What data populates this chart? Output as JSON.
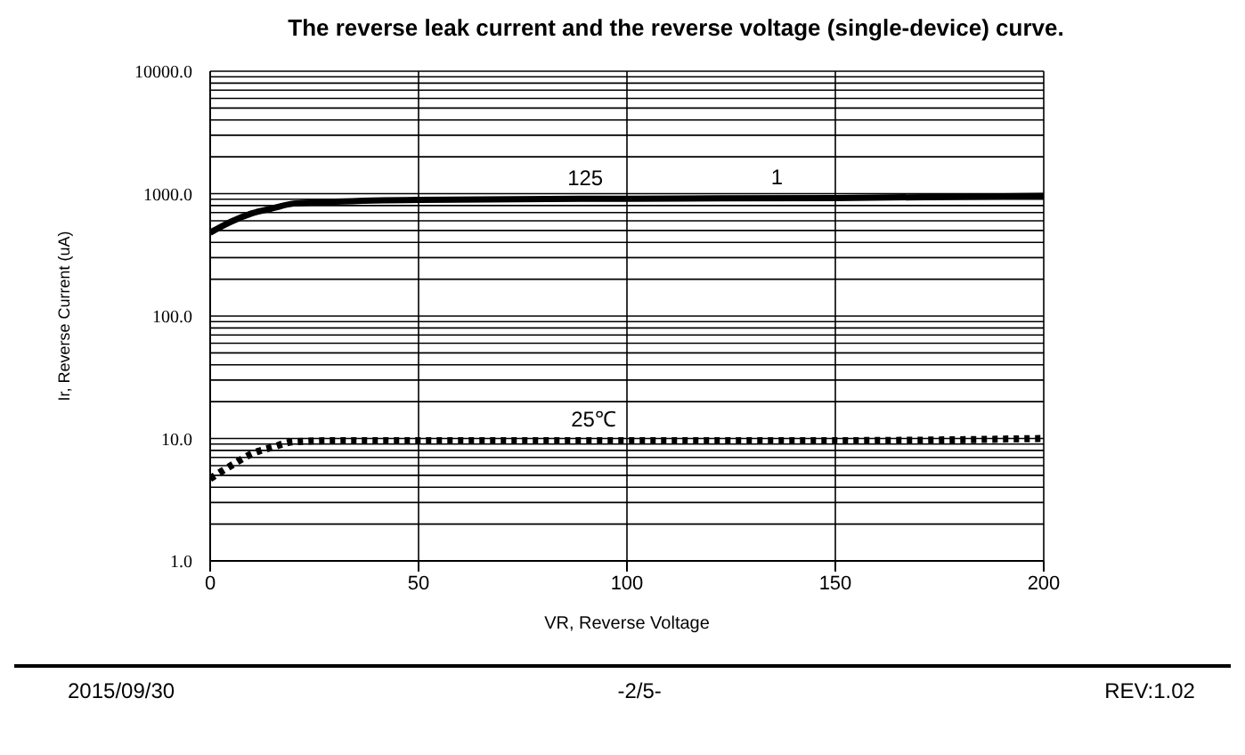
{
  "chart_data": {
    "type": "line",
    "title": "The reverse leak current and the reverse voltage (single-device) curve.",
    "xlabel": "VR, Reverse Voltage",
    "ylabel": "Ir, Reverse Current (uA)",
    "log": "y",
    "grid": true,
    "xlim": [
      0,
      200
    ],
    "xticks": [
      0,
      50,
      100,
      150,
      200
    ],
    "ylim": [
      1,
      10000
    ],
    "yticks": [
      {
        "value": 1,
        "label": "1.0"
      },
      {
        "value": 2,
        "label": null
      },
      {
        "value": 3,
        "label": null
      },
      {
        "value": 4,
        "label": null
      },
      {
        "value": 5,
        "label": null
      },
      {
        "value": 6,
        "label": null
      },
      {
        "value": 7,
        "label": null
      },
      {
        "value": 8,
        "label": null
      },
      {
        "value": 9,
        "label": null
      },
      {
        "value": 10,
        "label": "10.0"
      },
      {
        "value": 20,
        "label": null
      },
      {
        "value": 30,
        "label": null
      },
      {
        "value": 40,
        "label": null
      },
      {
        "value": 50,
        "label": null
      },
      {
        "value": 60,
        "label": null
      },
      {
        "value": 70,
        "label": null
      },
      {
        "value": 80,
        "label": null
      },
      {
        "value": 90,
        "label": null
      },
      {
        "value": 100,
        "label": "100.0"
      },
      {
        "value": 200,
        "label": null
      },
      {
        "value": 300,
        "label": null
      },
      {
        "value": 400,
        "label": null
      },
      {
        "value": 500,
        "label": null
      },
      {
        "value": 600,
        "label": null
      },
      {
        "value": 700,
        "label": null
      },
      {
        "value": 800,
        "label": null
      },
      {
        "value": 900,
        "label": null
      },
      {
        "value": 1000,
        "label": "1000.0"
      },
      {
        "value": 2000,
        "label": null
      },
      {
        "value": 3000,
        "label": null
      },
      {
        "value": 4000,
        "label": null
      },
      {
        "value": 5000,
        "label": null
      },
      {
        "value": 6000,
        "label": null
      },
      {
        "value": 7000,
        "label": null
      },
      {
        "value": 8000,
        "label": null
      },
      {
        "value": 9000,
        "label": null
      },
      {
        "value": 10000,
        "label": "10000.0"
      }
    ],
    "series": [
      {
        "color": "#000000",
        "line_style": "solid",
        "x": [
          0,
          5,
          10,
          15,
          20,
          30,
          50,
          100,
          150,
          200
        ],
        "values": [
          480,
          590,
          690,
          760,
          830,
          860,
          890,
          910,
          920,
          960
        ]
      },
      {
        "color": "#000000",
        "line_style": "dotted",
        "x": [
          0,
          5,
          10,
          15,
          20,
          30,
          50,
          100,
          150,
          200
        ],
        "values": [
          4.7,
          6,
          7.5,
          8.5,
          9.4,
          9.6,
          9.6,
          9.6,
          9.6,
          10
        ]
      }
    ],
    "annotations": [
      {
        "text": "125",
        "x": 90,
        "y": 900
      },
      {
        "text": "25℃",
        "x": 92,
        "y": 9.6
      },
      {
        "text": "1",
        "x": 136,
        "y": 910
      },
      "2015/09/30",
      "-2/5-",
      "REV:1.02"
    ]
  }
}
